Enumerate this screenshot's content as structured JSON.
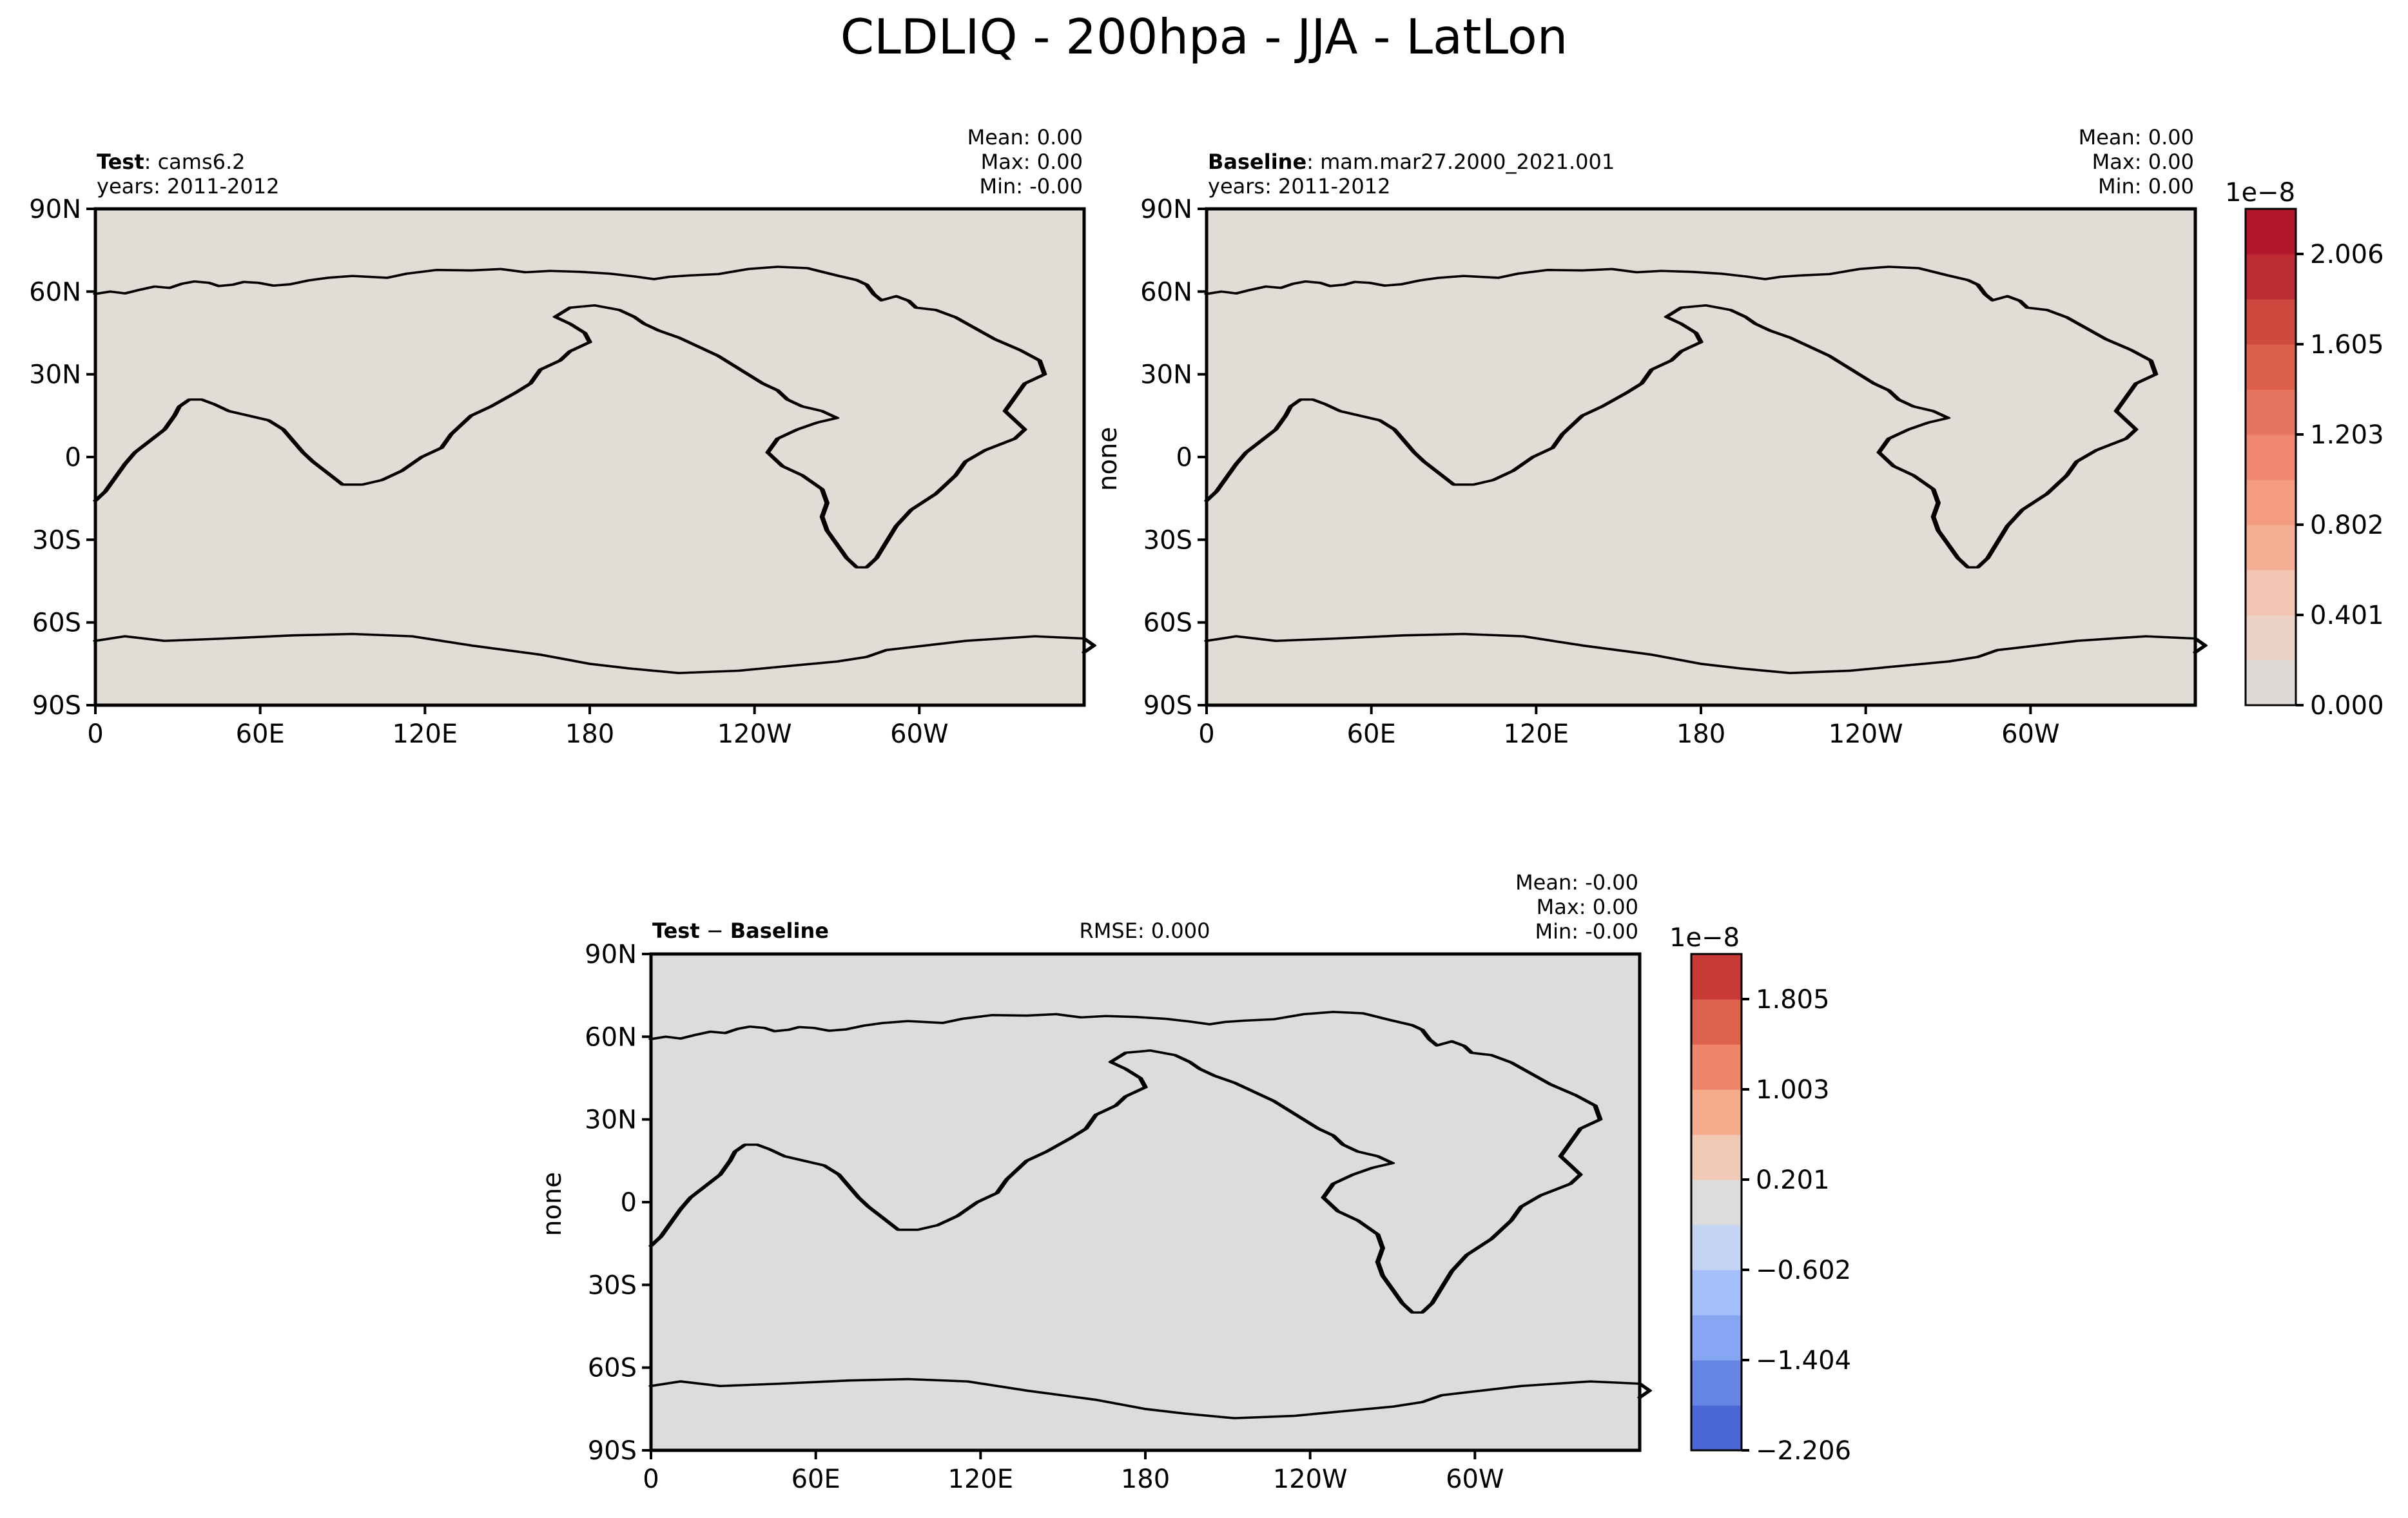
{
  "title": "CLDLIQ - 200hpa - JJA - LatLon",
  "panels": {
    "test": {
      "label_bold": "Test",
      "label_rest": ": cams6.2",
      "years": "years: 2011-2012",
      "stats": [
        "Mean:  0.00",
        "Max:  0.00",
        "Min: -0.00"
      ],
      "ylabel": "",
      "bg_color": "#e2dcd7"
    },
    "baseline": {
      "label_bold": "Baseline",
      "label_rest": ": mam.mar27.2000_2021.001",
      "years": "years: 2011-2012",
      "stats": [
        "Mean:  0.00",
        "Max:  0.00",
        "Min:  0.00"
      ],
      "ylabel": "none",
      "bg_color": "#e2dcd7"
    },
    "diff": {
      "label_bold": "Test",
      "label_mid": " − ",
      "label_bold2": "Baseline",
      "rmse": "RMSE: 0.000",
      "stats": [
        "Mean: -0.00",
        "Max:  0.00",
        "Min: -0.00"
      ],
      "ylabel": "none",
      "bg_color": "#dcdcdc"
    }
  },
  "lat_ticks": [
    "90N",
    "60N",
    "30N",
    "0",
    "30S",
    "60S",
    "90S"
  ],
  "lon_ticks": [
    "0",
    "60E",
    "120E",
    "180",
    "120W",
    "60W"
  ],
  "colorbar_top": {
    "multiplier": "1e−8",
    "tick_labels": [
      "2.006",
      "1.605",
      "1.203",
      "0.802",
      "0.401",
      "0.000"
    ],
    "colors": [
      "#dfdad6",
      "#ecd1c7",
      "#f2c4b2",
      "#f5ad93",
      "#f59b80",
      "#ef876f",
      "#e6745e",
      "#dc5f4c",
      "#cf4a3e",
      "#bc2a32",
      "#b2182b"
    ]
  },
  "colorbar_bottom": {
    "multiplier": "1e−8",
    "tick_labels": [
      "1.805",
      "1.003",
      "0.201",
      "−0.602",
      "−1.404",
      "−2.206"
    ],
    "colors": [
      "#4b67d6",
      "#6686e6",
      "#86a6f4",
      "#a4c0fb",
      "#c4d5f3",
      "#dcdcdc",
      "#f1cab6",
      "#f6ab8d",
      "#ef866b",
      "#de614d",
      "#c73a35"
    ]
  }
}
